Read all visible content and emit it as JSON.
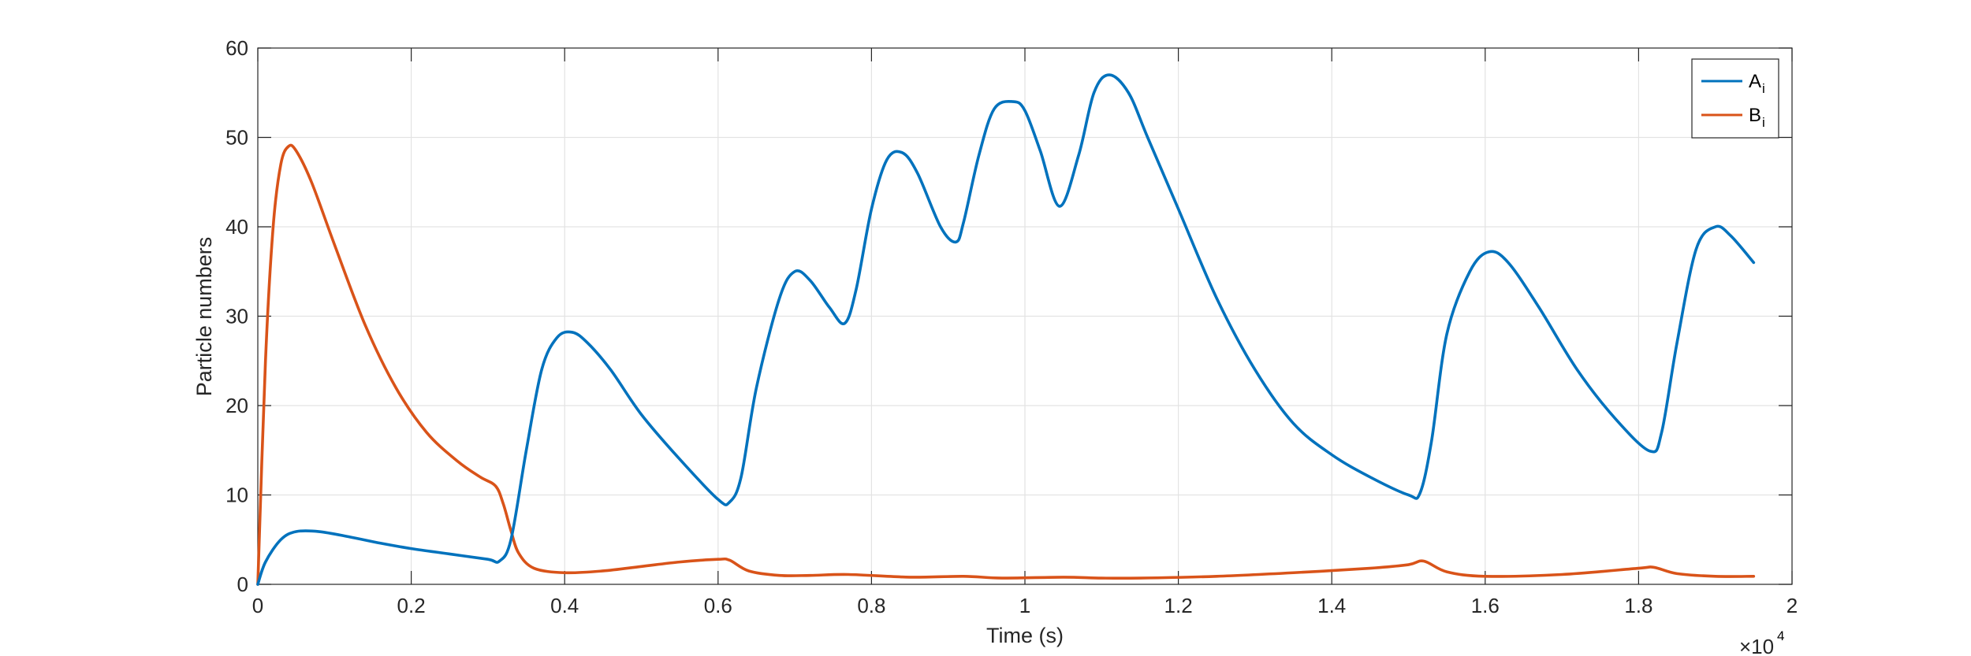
{
  "chart_data": {
    "type": "line",
    "xlabel": "Time (s)",
    "ylabel": "Particle numbers",
    "x_multiplier": {
      "base": "×10",
      "exponent": "4"
    },
    "xlim": [
      0,
      2
    ],
    "ylim": [
      0,
      60
    ],
    "xticks": [
      0,
      0.2,
      0.4,
      0.6,
      0.8,
      1,
      1.2,
      1.4,
      1.6,
      1.8,
      2
    ],
    "xtick_labels": [
      "0",
      "0.2",
      "0.4",
      "0.6",
      "0.8",
      "1",
      "1.2",
      "1.4",
      "1.6",
      "1.8",
      "2"
    ],
    "yticks": [
      0,
      10,
      20,
      30,
      40,
      50,
      60
    ],
    "ytick_labels": [
      "0",
      "10",
      "20",
      "30",
      "40",
      "50",
      "60"
    ],
    "grid": true,
    "legend_position": "top-right",
    "series": [
      {
        "name": "A",
        "name_subscript": "i",
        "color": "#0072BD",
        "x": [
          0,
          0.01,
          0.03,
          0.05,
          0.08,
          0.12,
          0.16,
          0.2,
          0.25,
          0.3,
          0.315,
          0.33,
          0.35,
          0.37,
          0.39,
          0.41,
          0.43,
          0.46,
          0.5,
          0.55,
          0.6,
          0.615,
          0.63,
          0.65,
          0.68,
          0.7,
          0.72,
          0.745,
          0.765,
          0.78,
          0.8,
          0.82,
          0.84,
          0.86,
          0.89,
          0.91,
          0.92,
          0.94,
          0.96,
          0.985,
          1.0,
          1.02,
          1.045,
          1.07,
          1.09,
          1.11,
          1.135,
          1.16,
          1.2,
          1.25,
          1.3,
          1.35,
          1.4,
          1.45,
          1.5,
          1.515,
          1.53,
          1.55,
          1.58,
          1.605,
          1.63,
          1.67,
          1.72,
          1.77,
          1.815,
          1.83,
          1.85,
          1.875,
          1.9,
          1.92,
          1.95
        ],
        "values": [
          0,
          2.5,
          5,
          5.9,
          5.9,
          5.3,
          4.6,
          4.0,
          3.4,
          2.8,
          2.6,
          5,
          15,
          24,
          27.6,
          28.2,
          27,
          24,
          19,
          14,
          9.5,
          9.2,
          12,
          22,
          32,
          35,
          34,
          31,
          29.2,
          33,
          42,
          47.5,
          48.3,
          46,
          40,
          38.3,
          40.5,
          48,
          53.2,
          54,
          53,
          48.5,
          42.3,
          48,
          55,
          57,
          55,
          50,
          42,
          32,
          24,
          18,
          14.5,
          12,
          10,
          10.2,
          16,
          28,
          35,
          37.2,
          36,
          31,
          24,
          18.5,
          14.9,
          17,
          27,
          37.5,
          40,
          39,
          36
        ]
      },
      {
        "name": "B",
        "name_subscript": "i",
        "color": "#D95319",
        "x": [
          0,
          0.01,
          0.02,
          0.03,
          0.04,
          0.05,
          0.07,
          0.1,
          0.14,
          0.18,
          0.22,
          0.26,
          0.29,
          0.31,
          0.32,
          0.33,
          0.34,
          0.36,
          0.4,
          0.45,
          0.5,
          0.55,
          0.6,
          0.615,
          0.64,
          0.68,
          0.72,
          0.77,
          0.85,
          0.92,
          0.97,
          1.05,
          1.1,
          1.15,
          1.25,
          1.35,
          1.45,
          1.5,
          1.52,
          1.55,
          1.6,
          1.7,
          1.8,
          1.82,
          1.85,
          1.9,
          1.95
        ],
        "values": [
          0,
          25,
          40,
          47,
          49,
          48.5,
          45,
          38,
          29,
          22,
          17,
          13.8,
          12,
          11,
          9,
          6,
          3.5,
          1.8,
          1.3,
          1.5,
          2,
          2.5,
          2.8,
          2.7,
          1.5,
          1.0,
          1.0,
          1.1,
          0.8,
          0.9,
          0.7,
          0.8,
          0.7,
          0.7,
          0.9,
          1.3,
          1.8,
          2.2,
          2.6,
          1.4,
          0.9,
          1.1,
          1.8,
          1.9,
          1.2,
          0.9,
          0.9
        ]
      }
    ]
  }
}
